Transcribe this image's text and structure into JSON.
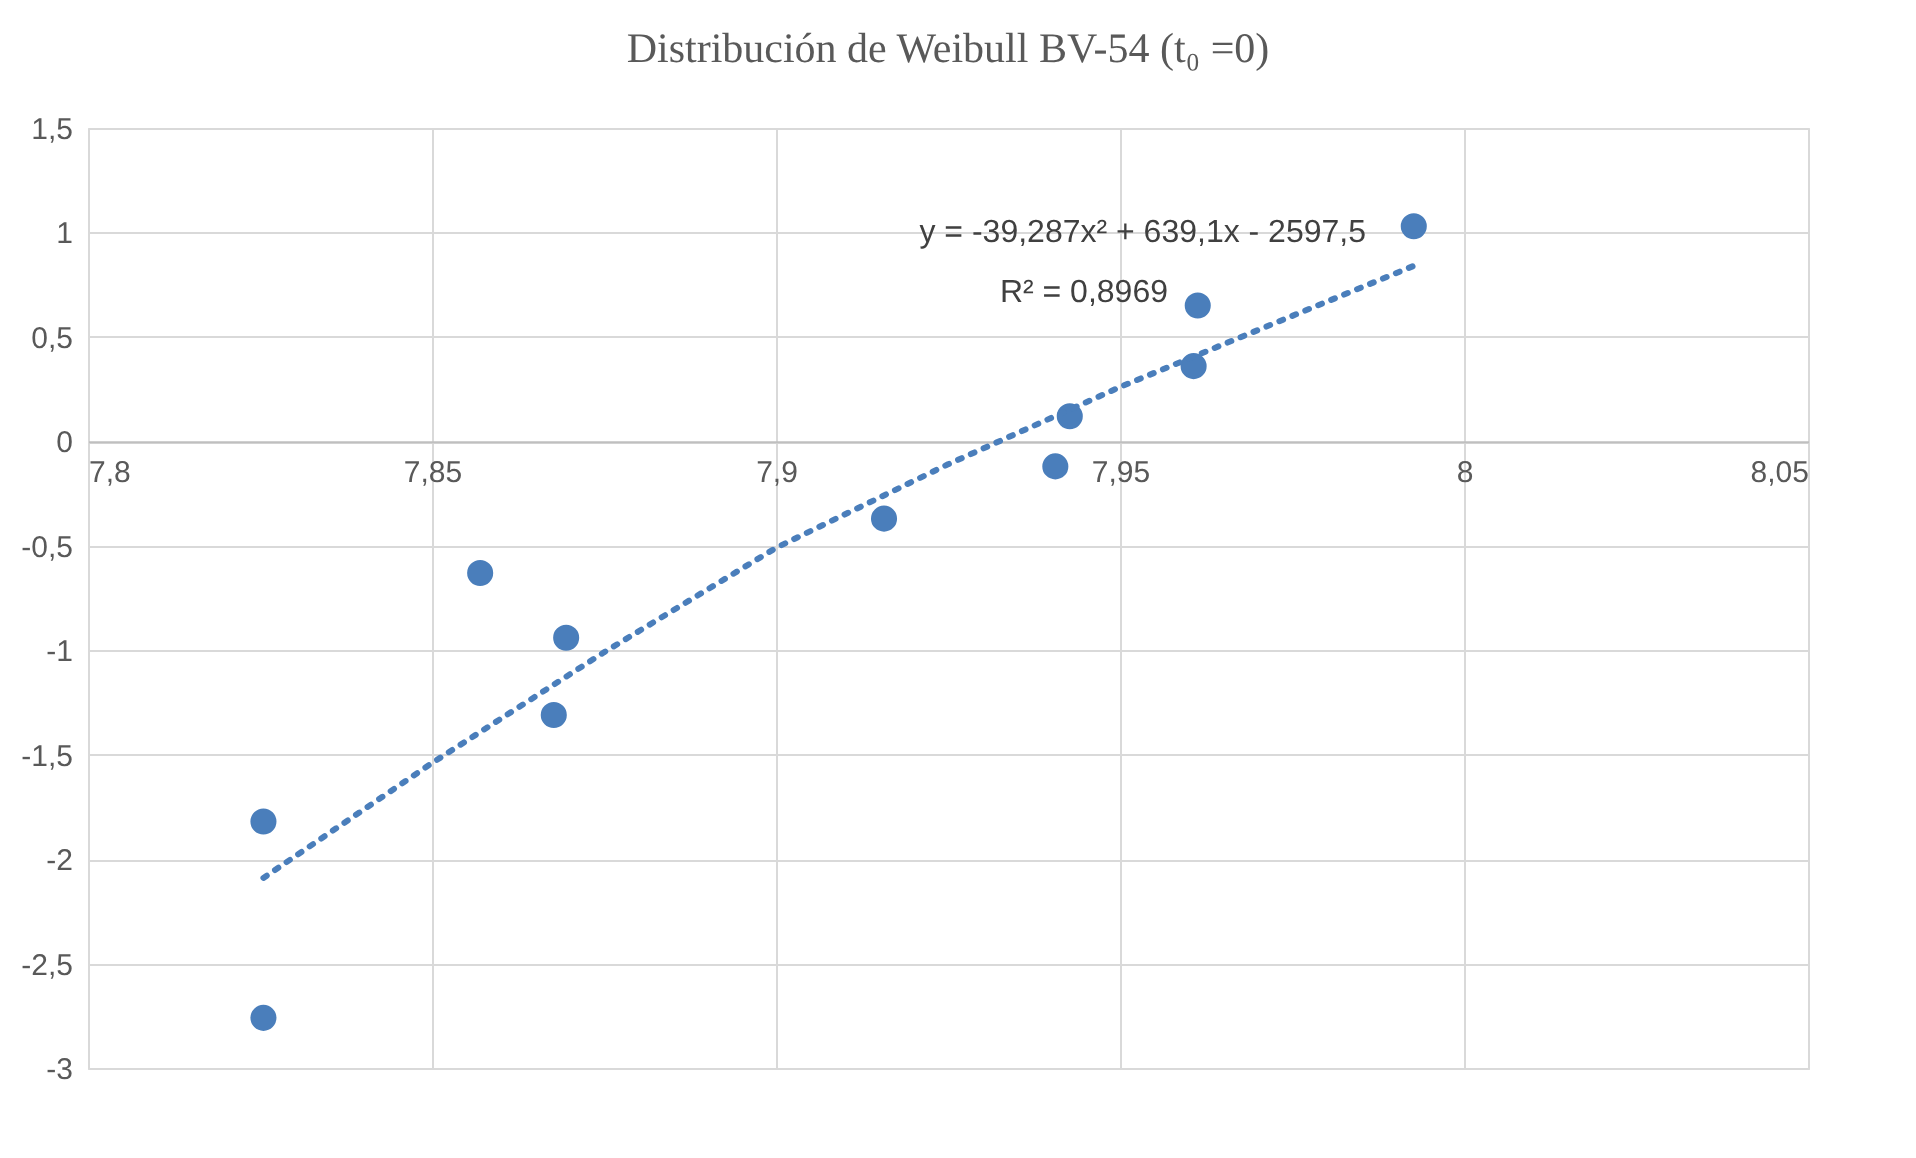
{
  "chart_data": {
    "type": "scatter",
    "title": "Distribución de Weibull BV-54  (t₀ =0)",
    "series": [
      {
        "type": "scatter",
        "color": "#4a7ebb",
        "x": [
          7.8255,
          7.8255,
          7.857,
          7.8695,
          7.8677,
          7.9157,
          7.9406,
          7.9427,
          7.9607,
          7.9613,
          7.9927
        ],
        "values": [
          -1.82,
          -2.76,
          -0.63,
          -0.94,
          -1.31,
          -0.37,
          -0.12,
          0.12,
          0.36,
          0.65,
          1.03
        ]
      },
      {
        "type": "line",
        "color": "#4a7ebb",
        "line_style": "dotted",
        "marker": "none",
        "x": [
          7.8255,
          7.85,
          7.875,
          7.9,
          7.925,
          7.95,
          7.975,
          7.9927
        ],
        "values": [
          -2.09,
          -1.54,
          -1.01,
          -0.51,
          -0.11,
          0.26,
          0.6,
          0.84
        ]
      }
    ],
    "annotations": [
      "y = -39,287x² + 639,1x - 2597,5",
      "R² = 0,8969"
    ],
    "xlim": [
      7.8,
      8.05
    ],
    "xticks": [
      {
        "value": 7.8,
        "label": "7,8"
      },
      {
        "value": 7.85,
        "label": "7,85"
      },
      {
        "value": 7.9,
        "label": "7,9"
      },
      {
        "value": 7.95,
        "label": "7,95"
      },
      {
        "value": 8,
        "label": "8"
      },
      {
        "value": 8.05,
        "label": "8,05"
      }
    ],
    "ylim": [
      -3,
      1.5
    ],
    "yticks": [
      {
        "value": -3,
        "label": "-3"
      },
      {
        "value": -2.5,
        "label": "-2,5"
      },
      {
        "value": -2,
        "label": "-2"
      },
      {
        "value": -1.5,
        "label": "-1,5"
      },
      {
        "value": -1,
        "label": "-1"
      },
      {
        "value": -0.5,
        "label": "-0,5"
      },
      {
        "value": 0,
        "label": "0"
      },
      {
        "value": 0.5,
        "label": "0,5"
      },
      {
        "value": 1,
        "label": "1"
      },
      {
        "value": 1.5,
        "label": "1,5"
      }
    ],
    "grid": true
  }
}
